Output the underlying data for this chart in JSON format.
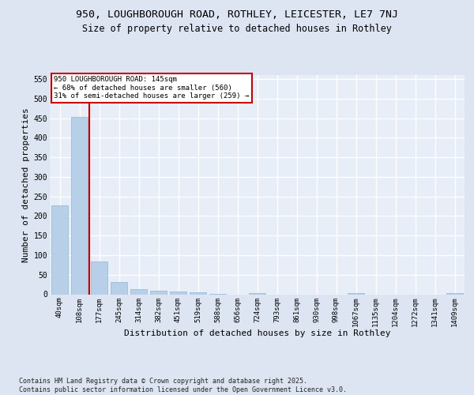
{
  "title1": "950, LOUGHBOROUGH ROAD, ROTHLEY, LEICESTER, LE7 7NJ",
  "title2": "Size of property relative to detached houses in Rothley",
  "xlabel": "Distribution of detached houses by size in Rothley",
  "ylabel": "Number of detached properties",
  "categories": [
    "40sqm",
    "108sqm",
    "177sqm",
    "245sqm",
    "314sqm",
    "382sqm",
    "451sqm",
    "519sqm",
    "588sqm",
    "656sqm",
    "724sqm",
    "793sqm",
    "861sqm",
    "930sqm",
    "998sqm",
    "1067sqm",
    "1135sqm",
    "1204sqm",
    "1272sqm",
    "1341sqm",
    "1409sqm"
  ],
  "values": [
    228,
    453,
    83,
    31,
    13,
    10,
    7,
    6,
    2,
    0,
    3,
    0,
    0,
    0,
    0,
    3,
    0,
    0,
    0,
    0,
    4
  ],
  "bar_color": "#b8cfe8",
  "bar_edgecolor": "#90b4d8",
  "vline_x": 1.5,
  "vline_color": "#cc0000",
  "annotation_text": "950 LOUGHBOROUGH ROAD: 145sqm\n← 68% of detached houses are smaller (560)\n31% of semi-detached houses are larger (259) →",
  "annotation_box_edgecolor": "#cc0000",
  "ylim_max": 560,
  "yticks": [
    0,
    50,
    100,
    150,
    200,
    250,
    300,
    350,
    400,
    450,
    500,
    550
  ],
  "footer": "Contains HM Land Registry data © Crown copyright and database right 2025.\nContains public sector information licensed under the Open Government Licence v3.0.",
  "bg_color": "#dde5f2",
  "plot_bg_color": "#e8eef8",
  "grid_color": "#ffffff",
  "title1_fontsize": 9.5,
  "title2_fontsize": 8.5,
  "tick_fontsize": 6.5,
  "label_fontsize": 8,
  "ann_fontsize": 6.5,
  "footer_fontsize": 6.0
}
